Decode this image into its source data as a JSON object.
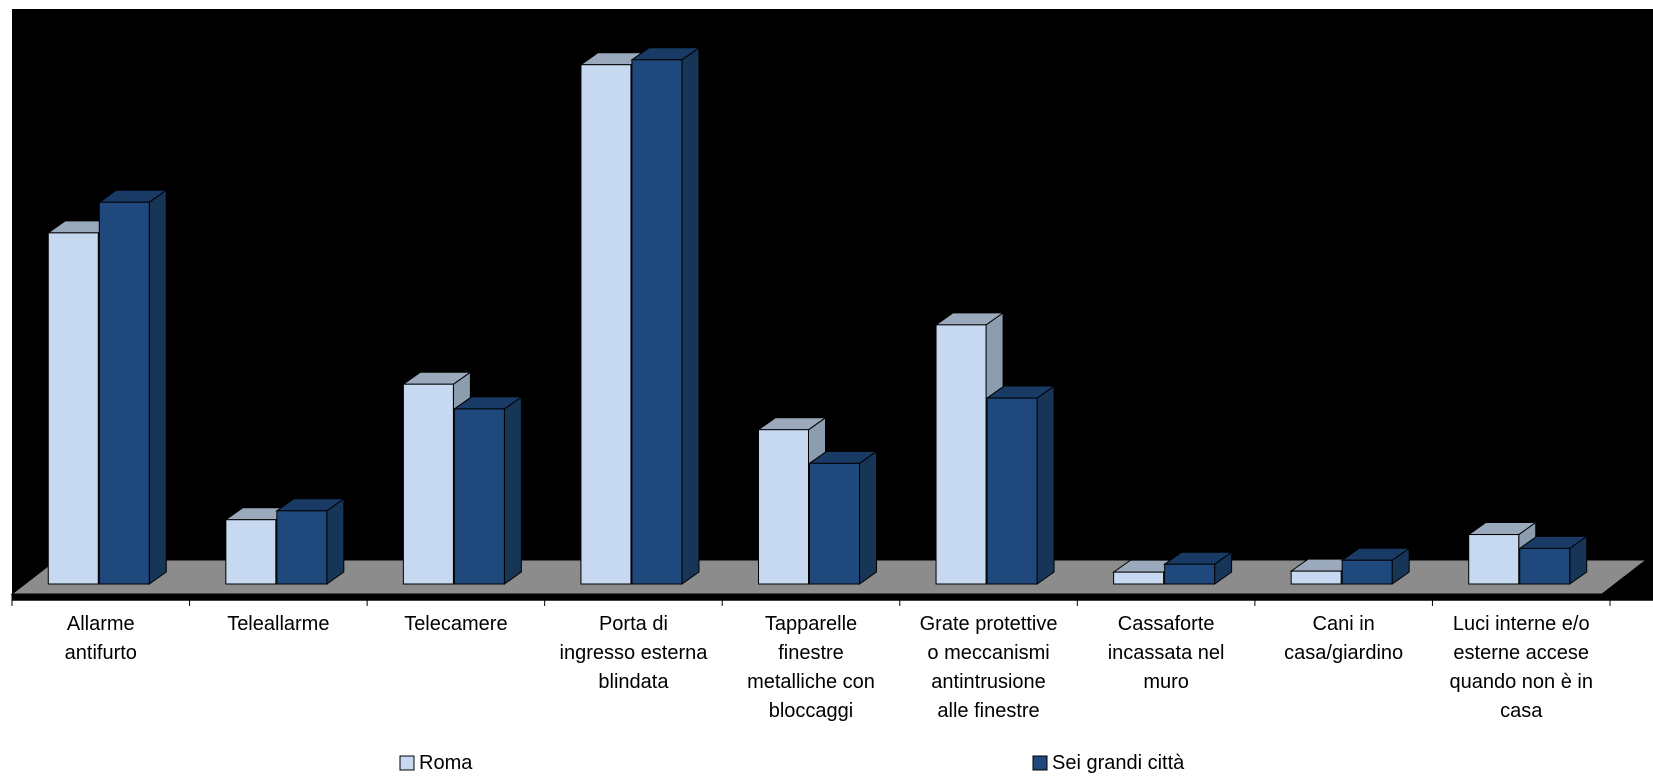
{
  "chart_data": {
    "type": "bar",
    "title": "",
    "xlabel": "",
    "ylabel": "",
    "grid": false,
    "legend_position": "bottom",
    "categories": [
      [
        "Allarme",
        "antifurto"
      ],
      [
        "Teleallarme"
      ],
      [
        "Telecamere"
      ],
      [
        "Porta di",
        "ingresso esterna",
        "blindata"
      ],
      [
        "Tapparelle",
        "finestre",
        "metalliche con",
        "bloccaggi"
      ],
      [
        "Grate protettive",
        "o meccanismi",
        "antintrusione",
        "alle finestre"
      ],
      [
        "Cassaforte",
        "incassata nel",
        "muro"
      ],
      [
        "Cani in",
        "casa/giardino"
      ],
      [
        "Luci interne e/o",
        "esterne accese",
        "quando non è in",
        "casa"
      ]
    ],
    "series": [
      {
        "name": "Roma",
        "color": "#c6d9f1",
        "top_color": "#9aaabc",
        "side_color": "#8d9db0",
        "values": [
          35.5,
          6.5,
          20.2,
          52.5,
          15.6,
          26.2,
          1.2,
          1.3,
          5.0
        ]
      },
      {
        "name": "Sei grandi città",
        "color": "#1f497d",
        "top_color": "#183a64",
        "side_color": "#173556",
        "values": [
          38.6,
          7.4,
          17.7,
          53.0,
          12.2,
          18.8,
          2.0,
          2.4,
          3.6
        ]
      }
    ],
    "ylim": [
      0,
      55
    ]
  },
  "colors": {
    "plot_background": "#000000",
    "floor": "#8c8c8c",
    "bar_outline": "#000000",
    "axis_line": "#000000",
    "label_text": "#000000"
  }
}
